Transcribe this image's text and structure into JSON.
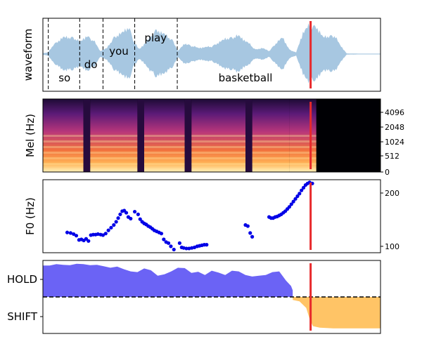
{
  "figure": {
    "colors": {
      "waveform": "#a7c7e1",
      "cursor": "#e8292b",
      "f0_points": "#0000e6",
      "hold_fill": "#6b63f5",
      "shift_fill": "#ffc466",
      "boundary": "#000000"
    }
  },
  "chart_data": [
    {
      "type": "area",
      "title": "",
      "ylabel": "waveform",
      "description_of_series": "audio amplitude envelope",
      "x_range": [
        0,
        1
      ],
      "words": [
        {
          "text": "so",
          "x": 0.064,
          "position": "low"
        },
        {
          "text": "do",
          "x": 0.142,
          "position": "mid"
        },
        {
          "text": "you",
          "x": 0.225,
          "position": "upper"
        },
        {
          "text": "play",
          "x": 0.334,
          "position": "top"
        },
        {
          "text": "basketball",
          "x": 0.6,
          "position": "low"
        }
      ],
      "word_boundaries_x": [
        0.016,
        0.109,
        0.178,
        0.272,
        0.398
      ],
      "envelope": {
        "x": [
          0.0,
          0.016,
          0.03,
          0.06,
          0.09,
          0.11,
          0.13,
          0.15,
          0.17,
          0.19,
          0.21,
          0.235,
          0.255,
          0.27,
          0.285,
          0.31,
          0.335,
          0.36,
          0.385,
          0.4,
          0.42,
          0.46,
          0.5,
          0.54,
          0.58,
          0.61,
          0.63,
          0.65,
          0.67,
          0.69,
          0.71,
          0.73,
          0.75,
          0.77,
          0.79,
          0.81,
          0.83,
          0.85,
          0.865,
          0.88,
          0.9,
          0.95,
          1.0
        ],
        "amp": [
          0.03,
          0.05,
          0.3,
          0.55,
          0.55,
          0.4,
          0.6,
          0.45,
          0.1,
          0.2,
          0.55,
          0.7,
          0.9,
          0.4,
          0.15,
          0.45,
          0.8,
          0.65,
          0.45,
          0.1,
          0.35,
          0.2,
          0.25,
          0.5,
          0.6,
          0.35,
          0.15,
          0.2,
          0.1,
          0.35,
          0.55,
          0.15,
          0.05,
          0.7,
          0.95,
          0.9,
          0.55,
          0.6,
          0.6,
          0.3,
          0.02,
          0.01,
          0.01
        ]
      },
      "cursor_x": 0.793
    },
    {
      "type": "heatmap",
      "title": "",
      "ylabel": "Mel (Hz)",
      "y_scale": "mel",
      "y_tick_labels": [
        "0",
        "512",
        "1024",
        "2048",
        "4096"
      ],
      "segments_x": [
        [
          0.0,
          0.12
        ],
        [
          0.14,
          0.28
        ],
        [
          0.3,
          0.42
        ],
        [
          0.44,
          0.6
        ],
        [
          0.62,
          0.73
        ],
        [
          0.73,
          0.81
        ]
      ],
      "silence_from_x": 0.81,
      "cursor_x": 0.793
    },
    {
      "type": "scatter",
      "title": "",
      "ylabel": "F0 (Hz)",
      "ylim": [
        88,
        225
      ],
      "y_ticks": [
        100,
        200
      ],
      "x": [
        0.072,
        0.082,
        0.091,
        0.099,
        0.107,
        0.114,
        0.121,
        0.128,
        0.135,
        0.142,
        0.149,
        0.156,
        0.163,
        0.171,
        0.178,
        0.186,
        0.194,
        0.202,
        0.21,
        0.217,
        0.223,
        0.229,
        0.235,
        0.241,
        0.247,
        0.253,
        0.26,
        0.272,
        0.282,
        0.288,
        0.294,
        0.3,
        0.306,
        0.312,
        0.318,
        0.324,
        0.33,
        0.337,
        0.344,
        0.351,
        0.358,
        0.365,
        0.372,
        0.379,
        0.388,
        0.405,
        0.411,
        0.417,
        0.425,
        0.433,
        0.441,
        0.449,
        0.457,
        0.464,
        0.471,
        0.478,
        0.485,
        0.6,
        0.607,
        0.614,
        0.62,
        0.67,
        0.676,
        0.682,
        0.688,
        0.694,
        0.7,
        0.706,
        0.712,
        0.718,
        0.724,
        0.73,
        0.736,
        0.742,
        0.748,
        0.754,
        0.76,
        0.766,
        0.772,
        0.778,
        0.784,
        0.79,
        0.798
      ],
      "y": [
        126,
        125,
        123,
        120,
        112,
        113,
        111,
        114,
        110,
        121,
        122,
        122,
        123,
        122,
        121,
        124,
        130,
        135,
        140,
        146,
        153,
        160,
        166,
        167,
        163,
        155,
        152,
        165,
        160,
        151,
        146,
        143,
        141,
        138,
        136,
        133,
        130,
        128,
        126,
        124,
        113,
        108,
        106,
        100,
        94,
        106,
        98,
        97,
        96,
        96,
        97,
        98,
        100,
        101,
        102,
        103,
        103,
        140,
        138,
        125,
        118,
        155,
        153,
        153,
        155,
        156,
        158,
        160,
        163,
        166,
        170,
        174,
        179,
        184,
        189,
        194,
        199,
        205,
        210,
        215,
        218,
        220,
        218
      ],
      "cursor_x": 0.793
    },
    {
      "type": "area",
      "title": "",
      "categories": [
        "HOLD",
        "SHIFT"
      ],
      "ylim": [
        -1,
        1
      ],
      "threshold": 0,
      "series": [
        {
          "key": "hold",
          "x": [
            0.0,
            0.02,
            0.04,
            0.06,
            0.08,
            0.1,
            0.12,
            0.14,
            0.16,
            0.18,
            0.2,
            0.22,
            0.24,
            0.26,
            0.28,
            0.3,
            0.32,
            0.34,
            0.36,
            0.38,
            0.4,
            0.42,
            0.44,
            0.46,
            0.48,
            0.5,
            0.52,
            0.54,
            0.56,
            0.58,
            0.6,
            0.62,
            0.64,
            0.66,
            0.68,
            0.7,
            0.72,
            0.735,
            0.74
          ],
          "y": [
            0.86,
            0.86,
            0.9,
            0.88,
            0.87,
            0.91,
            0.9,
            0.87,
            0.88,
            0.84,
            0.8,
            0.83,
            0.76,
            0.7,
            0.68,
            0.78,
            0.73,
            0.58,
            0.62,
            0.7,
            0.8,
            0.79,
            0.66,
            0.69,
            0.6,
            0.72,
            0.67,
            0.6,
            0.72,
            0.7,
            0.6,
            0.56,
            0.58,
            0.6,
            0.68,
            0.7,
            0.45,
            0.3,
            0.18
          ]
        },
        {
          "key": "shift",
          "x": [
            0.74,
            0.76,
            0.78,
            0.79,
            0.8,
            0.82,
            0.84,
            0.86,
            0.88,
            0.9,
            0.92,
            0.94,
            0.96,
            0.98,
            1.0
          ],
          "y": [
            -0.08,
            -0.12,
            -0.3,
            -0.6,
            -0.8,
            -0.84,
            -0.85,
            -0.86,
            -0.86,
            -0.86,
            -0.86,
            -0.86,
            -0.86,
            -0.86,
            -0.86
          ]
        }
      ],
      "cursor_x": 0.793
    }
  ]
}
